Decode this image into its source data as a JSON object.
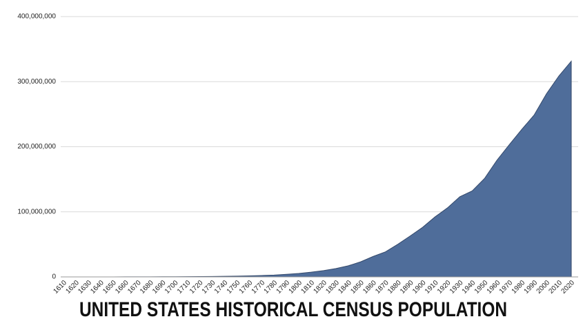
{
  "chart_data": {
    "type": "area",
    "title": "UNITED STATES HISTORICAL CENSUS POPULATION",
    "categories": [
      "1610",
      "1620",
      "1630",
      "1640",
      "1650",
      "1660",
      "1670",
      "1680",
      "1690",
      "1700",
      "1710",
      "1720",
      "1730",
      "1740",
      "1750",
      "1760",
      "1770",
      "1780",
      "1790",
      "1800",
      "1810",
      "1820",
      "1830",
      "1840",
      "1850",
      "1860",
      "1870",
      "1880",
      "1890",
      "1900",
      "1910",
      "1920",
      "1930",
      "1940",
      "1950",
      "1960",
      "1970",
      "1980",
      "1990",
      "2000",
      "2010",
      "2020"
    ],
    "values": [
      350,
      2302,
      4646,
      26634,
      50368,
      75058,
      111935,
      151507,
      210372,
      250888,
      331711,
      466185,
      629445,
      905563,
      1170760,
      1593625,
      2148076,
      2780369,
      3929214,
      5308483,
      7239881,
      9638453,
      12866020,
      17069453,
      23191876,
      31443321,
      38558371,
      50189209,
      62979766,
      76212168,
      92228496,
      106021537,
      123202624,
      132164569,
      151325798,
      179323175,
      203211926,
      226545805,
      248709873,
      281421906,
      308745538,
      331449281
    ],
    "color": "#4f6d9a",
    "ylim": [
      0,
      400000000
    ],
    "yticks": [
      0,
      {
        "value": 100000000,
        "label": "100,000,000"
      },
      {
        "value": 200000000,
        "label": "200,000,000"
      },
      {
        "value": 300000000,
        "label": "300,000,000"
      },
      {
        "value": 400000000,
        "label": "400,000,000"
      }
    ],
    "grid": true
  }
}
